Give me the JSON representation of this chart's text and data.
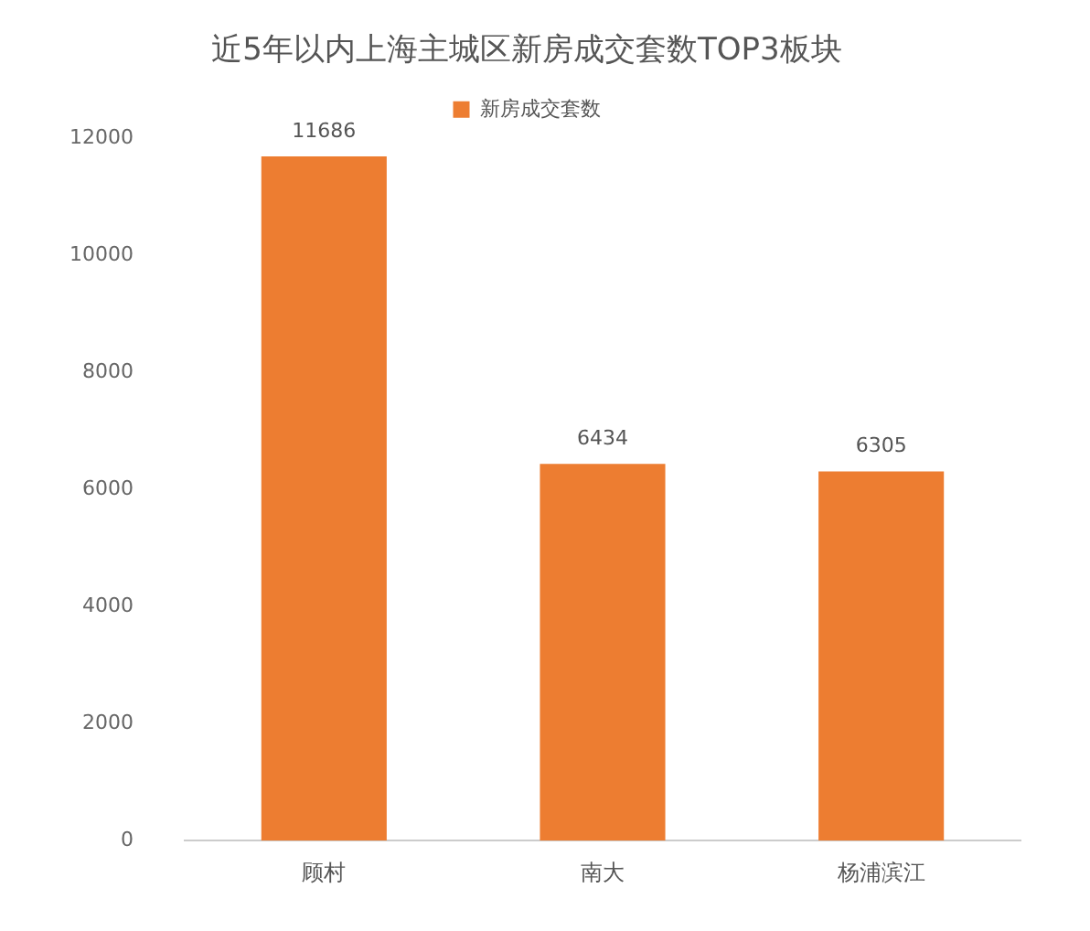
{
  "chart_data": {
    "type": "bar",
    "title": "近5年以内上海主城区新房成交套数TOP3板块",
    "categories": [
      "顾村",
      "南大",
      "杨浦滨江"
    ],
    "series": [
      {
        "name": "新房成交套数",
        "color": "#ed7d31",
        "values": [
          11686,
          6434,
          6305
        ]
      }
    ],
    "ylim": [
      0,
      12000
    ],
    "yticks": [
      0,
      2000,
      4000,
      6000,
      8000,
      10000,
      12000
    ],
    "grid": false,
    "legend": "top",
    "data_labels": true
  }
}
